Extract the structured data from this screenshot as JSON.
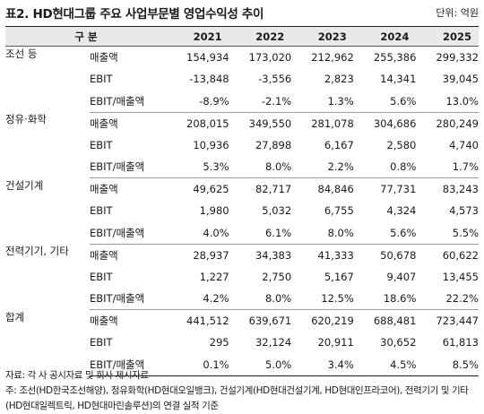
{
  "header": {
    "title": "표2. HD현대그룹 주요 사업부문별 영업수익성 추이",
    "unit": "단위: 억원"
  },
  "table": {
    "segment_header": "구 분",
    "years": [
      "2021",
      "2022",
      "2023",
      "2024",
      "2025"
    ],
    "groups": [
      {
        "segment": "조선 등",
        "rows": [
          {
            "metric": "매출액",
            "values": [
              "154,934",
              "173,020",
              "212,962",
              "255,386",
              "299,332"
            ]
          },
          {
            "metric": "EBIT",
            "values": [
              "-13,848",
              "-3,556",
              "2,823",
              "14,341",
              "39,045"
            ]
          },
          {
            "metric": "EBIT/매출액",
            "values": [
              "-8.9%",
              "-2.1%",
              "1.3%",
              "5.6%",
              "13.0%"
            ]
          }
        ]
      },
      {
        "segment": "정유·화학",
        "rows": [
          {
            "metric": "매출액",
            "values": [
              "208,015",
              "349,550",
              "281,078",
              "304,686",
              "280,249"
            ]
          },
          {
            "metric": "EBIT",
            "values": [
              "10,936",
              "27,898",
              "6,167",
              "2,580",
              "4,740"
            ]
          },
          {
            "metric": "EBIT/매출액",
            "values": [
              "5.3%",
              "8.0%",
              "2.2%",
              "0.8%",
              "1.7%"
            ]
          }
        ]
      },
      {
        "segment": "건설기계",
        "rows": [
          {
            "metric": "매출액",
            "values": [
              "49,625",
              "82,717",
              "84,846",
              "77,731",
              "83,243"
            ]
          },
          {
            "metric": "EBIT",
            "values": [
              "1,980",
              "5,032",
              "6,755",
              "4,324",
              "4,573"
            ]
          },
          {
            "metric": "EBIT/매출액",
            "values": [
              "4.0%",
              "6.1%",
              "8.0%",
              "5.6%",
              "5.5%"
            ]
          }
        ]
      },
      {
        "segment": "전력기기, 기타",
        "rows": [
          {
            "metric": "매출액",
            "values": [
              "28,937",
              "34,383",
              "41,333",
              "50,678",
              "60,622"
            ]
          },
          {
            "metric": "EBIT",
            "values": [
              "1,227",
              "2,750",
              "5,167",
              "9,407",
              "13,455"
            ]
          },
          {
            "metric": "EBIT/매출액",
            "values": [
              "4.2%",
              "8.0%",
              "12.5%",
              "18.6%",
              "22.2%"
            ]
          }
        ]
      },
      {
        "segment": "합계",
        "rows": [
          {
            "metric": "매출액",
            "values": [
              "441,512",
              "639,671",
              "620,219",
              "688,481",
              "723,447"
            ]
          },
          {
            "metric": "EBIT",
            "values": [
              "295",
              "32,124",
              "20,911",
              "30,652",
              "61,813"
            ]
          },
          {
            "metric": "EBIT/매출액",
            "values": [
              "0.1%",
              "5.0%",
              "3.4%",
              "4.5%",
              "8.5%"
            ]
          }
        ]
      }
    ]
  },
  "notes": {
    "source": "자료: 각 사 공시자료 및 회사 제시자료",
    "note_line1": "주: 조선(HD한국조선해양), 정유화학(HD현대오일뱅크), 건설기계(HD현대건설기계, HD현대인프라코어), 전력기기 및 기타",
    "note_line2": "(HD현대일렉트릭, HD현대마린솔루션)의 연결 실적 기준"
  }
}
